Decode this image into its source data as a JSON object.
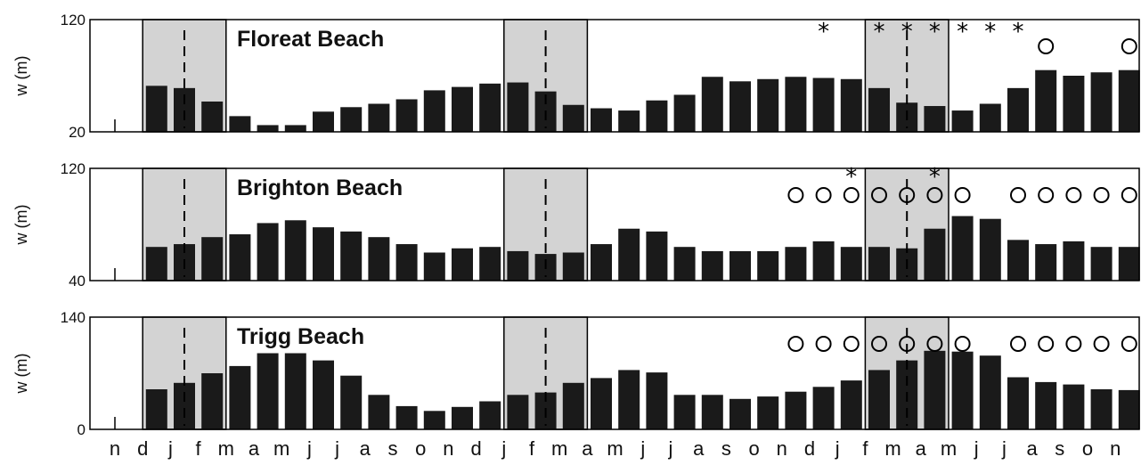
{
  "chart_data": {
    "type": "bar",
    "categories": [
      "n",
      "d",
      "j",
      "f",
      "m",
      "a",
      "m",
      "j",
      "j",
      "a",
      "s",
      "o",
      "n",
      "d",
      "j",
      "f",
      "m",
      "a",
      "m",
      "j",
      "j",
      "a",
      "s",
      "o",
      "n",
      "d",
      "j",
      "f",
      "m",
      "a",
      "m",
      "j",
      "j",
      "a",
      "s",
      "o",
      "n"
    ],
    "panels": [
      {
        "title": "Floreat Beach",
        "ylabel": "w (m)",
        "ylim": [
          20,
          120
        ],
        "yticks": [
          "120",
          "20"
        ],
        "values": [
          61,
          59,
          47,
          34,
          26,
          26,
          38,
          42,
          45,
          49,
          57,
          60,
          63,
          64,
          56,
          44,
          41,
          39,
          48,
          53,
          69,
          65,
          67,
          69,
          68,
          67,
          59,
          46,
          43,
          39,
          45,
          59,
          75,
          70,
          73,
          75
        ],
        "stars": [
          25,
          27,
          28,
          29,
          30,
          31,
          32
        ],
        "circles": [
          33,
          36
        ],
        "shaded_ranges": [
          [
            1,
            3
          ],
          [
            14,
            16
          ],
          [
            27,
            29
          ]
        ],
        "dashed_at": [
          2,
          15,
          28
        ]
      },
      {
        "title": "Brighton Beach",
        "ylabel": "w (m)",
        "ylim": [
          40,
          120
        ],
        "yticks": [
          "120",
          "40"
        ],
        "values": [
          64,
          66,
          71,
          73,
          81,
          83,
          78,
          75,
          71,
          66,
          60,
          63,
          64,
          61,
          59,
          60,
          66,
          77,
          75,
          64,
          61,
          61,
          61,
          64,
          68,
          64,
          64,
          63,
          77,
          86,
          84,
          69,
          66,
          68,
          64,
          64
        ],
        "stars": [
          26,
          29
        ],
        "circles": [
          24,
          25,
          26,
          27,
          28,
          29,
          30,
          32,
          33,
          34,
          35,
          36
        ],
        "shaded_ranges": [
          [
            1,
            3
          ],
          [
            14,
            16
          ],
          [
            27,
            29
          ]
        ],
        "dashed_at": [
          2,
          15,
          28
        ]
      },
      {
        "title": "Trigg Beach",
        "ylabel": "w (m)",
        "ylim": [
          0,
          140
        ],
        "yticks": [
          "140",
          "0"
        ],
        "values": [
          50,
          58,
          70,
          79,
          95,
          95,
          86,
          67,
          43,
          29,
          23,
          28,
          35,
          43,
          46,
          58,
          64,
          74,
          71,
          43,
          43,
          38,
          41,
          47,
          53,
          61,
          74,
          86,
          98,
          97,
          92,
          65,
          59,
          56,
          50,
          49
        ],
        "stars": [],
        "circles": [
          24,
          25,
          26,
          27,
          28,
          29,
          30,
          32,
          33,
          34,
          35,
          36
        ],
        "shaded_ranges": [
          [
            1,
            3
          ],
          [
            14,
            16
          ],
          [
            27,
            29
          ]
        ],
        "dashed_at": [
          2,
          15,
          28
        ]
      }
    ]
  }
}
